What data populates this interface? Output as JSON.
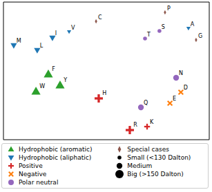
{
  "chart_data": {
    "type": "scatter",
    "xlim": [
      0,
      100
    ],
    "ylim": [
      0,
      100
    ],
    "tick_labels": false,
    "legend": "bottom",
    "sizes": [
      "Small (<130 Dalton)",
      "Medium",
      "Big (>150 Dalton)"
    ],
    "series": [
      {
        "name": "Hydrophobic (aromatic)",
        "color": "#2ca02c",
        "marker": "triangle-up",
        "labels": [
          "F",
          "W",
          "Y"
        ],
        "x": [
          21.8,
          15.8,
          27.5
        ],
        "y": [
          47.5,
          35,
          39.5
        ],
        "size": [
          "Big (>150 Dalton)",
          "Big (>150 Dalton)",
          "Big (>150 Dalton)"
        ]
      },
      {
        "name": "Hydrophobic (aliphatic)",
        "color": "#1f77b4",
        "marker": "triangle-down",
        "labels": [
          "M",
          "L",
          "I",
          "V",
          "A"
        ],
        "x": [
          5.0,
          16.4,
          23.8,
          31.9,
          89.9
        ],
        "y": [
          68.5,
          65,
          74,
          78.5,
          81
        ],
        "size": [
          "Medium",
          "Medium",
          "Medium",
          "Small (<130 Dalton)",
          "Small (<130 Dalton)"
        ]
      },
      {
        "name": "Positive",
        "color": "#d62728",
        "marker": "plus",
        "labels": [
          "H",
          "K",
          "R"
        ],
        "x": [
          46.3,
          69.8,
          61.4
        ],
        "y": [
          30,
          9.5,
          7
        ],
        "size": [
          "Big (>150 Dalton)",
          "Medium",
          "Big (>150 Dalton)"
        ]
      },
      {
        "name": "Negative",
        "color": "#ff7f0e",
        "marker": "x",
        "labels": [
          "D",
          "E"
        ],
        "x": [
          86.2,
          80.9
        ],
        "y": [
          34.5,
          26.5
        ],
        "size": [
          "Medium",
          "Medium"
        ]
      },
      {
        "name": "Polar neutral",
        "color": "#9467bd",
        "marker": "circle",
        "labels": [
          "T",
          "S",
          "N",
          "Q"
        ],
        "x": [
          68.8,
          75.8,
          83.9,
          66.8
        ],
        "y": [
          73.5,
          79,
          45,
          23.5
        ],
        "size": [
          "Small (<130 Dalton)",
          "Small (<130 Dalton)",
          "Medium",
          "Medium"
        ]
      },
      {
        "name": "Special cases",
        "color": "#8c564b",
        "marker": "diamond",
        "labels": [
          "C",
          "P",
          "G"
        ],
        "x": [
          45,
          78.5,
          93.6
        ],
        "y": [
          86,
          92.5,
          72.5
        ],
        "size": [
          "Small (<130 Dalton)",
          "Small (<130 Dalton)",
          "Small (<130 Dalton)"
        ]
      }
    ]
  }
}
